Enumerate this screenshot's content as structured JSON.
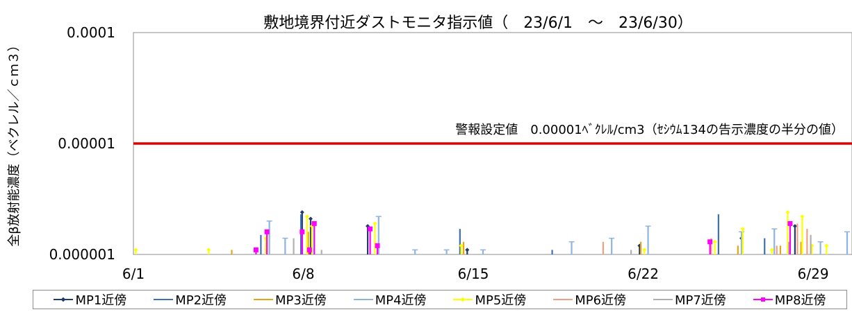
{
  "chart_data": {
    "type": "line",
    "title": "敷地境界付近ダストモニタ指示値（　23/6/1　～　23/6/30）",
    "ylabel": "全β放射能濃度（ベクレル／ｃｍ３）",
    "xlabel": "",
    "yscale": "log",
    "ylim": [
      1e-06,
      0.0001
    ],
    "yticks": [
      "0.0001",
      "0.00001",
      "0.000001"
    ],
    "xlim": [
      1,
      30.6
    ],
    "xticks": [
      {
        "label": "6/1",
        "day": 1
      },
      {
        "label": "6/8",
        "day": 8
      },
      {
        "label": "6/15",
        "day": 15
      },
      {
        "label": "6/22",
        "day": 22
      },
      {
        "label": "6/29",
        "day": 29
      }
    ],
    "grid": false,
    "legend_position": "bottom",
    "threshold": {
      "value": 1e-05,
      "label": "警報設定値　0.00001ﾍﾞｸﾚﾙ/cm3（ｾｼｳﾑ134の告示濃度の半分の値）",
      "color": "#e00000"
    },
    "series": [
      {
        "name": "MP1近傍",
        "color": "#1f3a6e",
        "marker": "diamond",
        "points": [
          [
            7.95,
            2.4e-06
          ],
          [
            8.3,
            2.1e-06
          ],
          [
            10.65,
            1.8e-06
          ],
          [
            14.75,
            1.1e-06
          ],
          [
            21.85,
            1.2e-06
          ],
          [
            26.05,
            1.4e-06
          ],
          [
            28.25,
            1.8e-06
          ]
        ]
      },
      {
        "name": "MP2近傍",
        "color": "#3d6fb4",
        "marker": "none",
        "points": [
          [
            6.25,
            1.5e-06
          ],
          [
            7.9,
            2.3e-06
          ],
          [
            14.45,
            1.7e-06
          ],
          [
            18.25,
            1.1e-06
          ],
          [
            25.1,
            2.3e-06
          ],
          [
            27.0,
            1.4e-06
          ]
        ]
      },
      {
        "name": "MP3近傍",
        "color": "#e8a317",
        "marker": "none",
        "points": [
          [
            5.05,
            1.1e-06
          ],
          [
            6.45,
            1.2e-06
          ],
          [
            8.2,
            1.6e-06
          ],
          [
            14.6,
            1.3e-06
          ],
          [
            21.9,
            1.3e-06
          ],
          [
            25.9,
            1.2e-06
          ],
          [
            27.65,
            1.2e-06
          ],
          [
            28.5,
            1.3e-06
          ]
        ]
      },
      {
        "name": "MP4近傍",
        "color": "#8fb4e0",
        "marker": "dash",
        "points": [
          [
            6.6,
            2e-06
          ],
          [
            7.25,
            1.4e-06
          ],
          [
            11.1,
            2.2e-06
          ],
          [
            12.6,
            1.1e-06
          ],
          [
            13.9,
            1.1e-06
          ],
          [
            15.4,
            1.1e-06
          ],
          [
            19.05,
            1.3e-06
          ],
          [
            20.7,
            1.4e-06
          ],
          [
            22.2,
            1.8e-06
          ],
          [
            26.05,
            1.6e-06
          ],
          [
            27.4,
            1.7e-06
          ],
          [
            29.3,
            1.3e-06
          ],
          [
            30.4,
            1.6e-06
          ]
        ]
      },
      {
        "name": "MP5近傍",
        "color": "#ffff00",
        "marker": "diamond",
        "points": [
          [
            1.1,
            1.1e-06
          ],
          [
            4.1,
            1.1e-06
          ],
          [
            6.45,
            1.4e-06
          ],
          [
            8.15,
            2.2e-06
          ],
          [
            8.35,
            1.8e-06
          ],
          [
            10.95,
            1.9e-06
          ],
          [
            14.5,
            1.2e-06
          ],
          [
            22.05,
            1.1e-06
          ],
          [
            24.95,
            1.3e-06
          ],
          [
            26.1,
            1.7e-06
          ],
          [
            27.3,
            1.1e-06
          ],
          [
            27.95,
            2.4e-06
          ],
          [
            28.55,
            2.2e-06
          ],
          [
            28.95,
            1.2e-06
          ],
          [
            29.55,
            1.2e-06
          ]
        ]
      },
      {
        "name": "MP6近傍",
        "color": "#f0a080",
        "marker": "none",
        "points": [
          [
            20.35,
            1.3e-06
          ],
          [
            24.8,
            1.4e-06
          ],
          [
            27.5,
            1.2e-06
          ],
          [
            28.35,
            1.9e-06
          ],
          [
            28.75,
            1.7e-06
          ]
        ]
      },
      {
        "name": "MP7近傍",
        "color": "#b0b0b0",
        "marker": "none",
        "points": [
          [
            7.6,
            1.4e-06
          ],
          [
            8.75,
            1.1e-06
          ],
          [
            21.5,
            1.1e-06
          ],
          [
            28.0,
            1.3e-06
          ],
          [
            28.9,
            1.5e-06
          ]
        ]
      },
      {
        "name": "MP8近傍",
        "color": "#ff00ff",
        "marker": "square",
        "points": [
          [
            6.05,
            1.1e-06
          ],
          [
            6.5,
            1.6e-06
          ],
          [
            7.95,
            1.6e-06
          ],
          [
            8.25,
            1.1e-06
          ],
          [
            8.45,
            1.9e-06
          ],
          [
            10.75,
            1.7e-06
          ],
          [
            11.05,
            1.2e-06
          ],
          [
            24.75,
            1.3e-06
          ],
          [
            28.05,
            1.9e-06
          ]
        ]
      }
    ]
  }
}
